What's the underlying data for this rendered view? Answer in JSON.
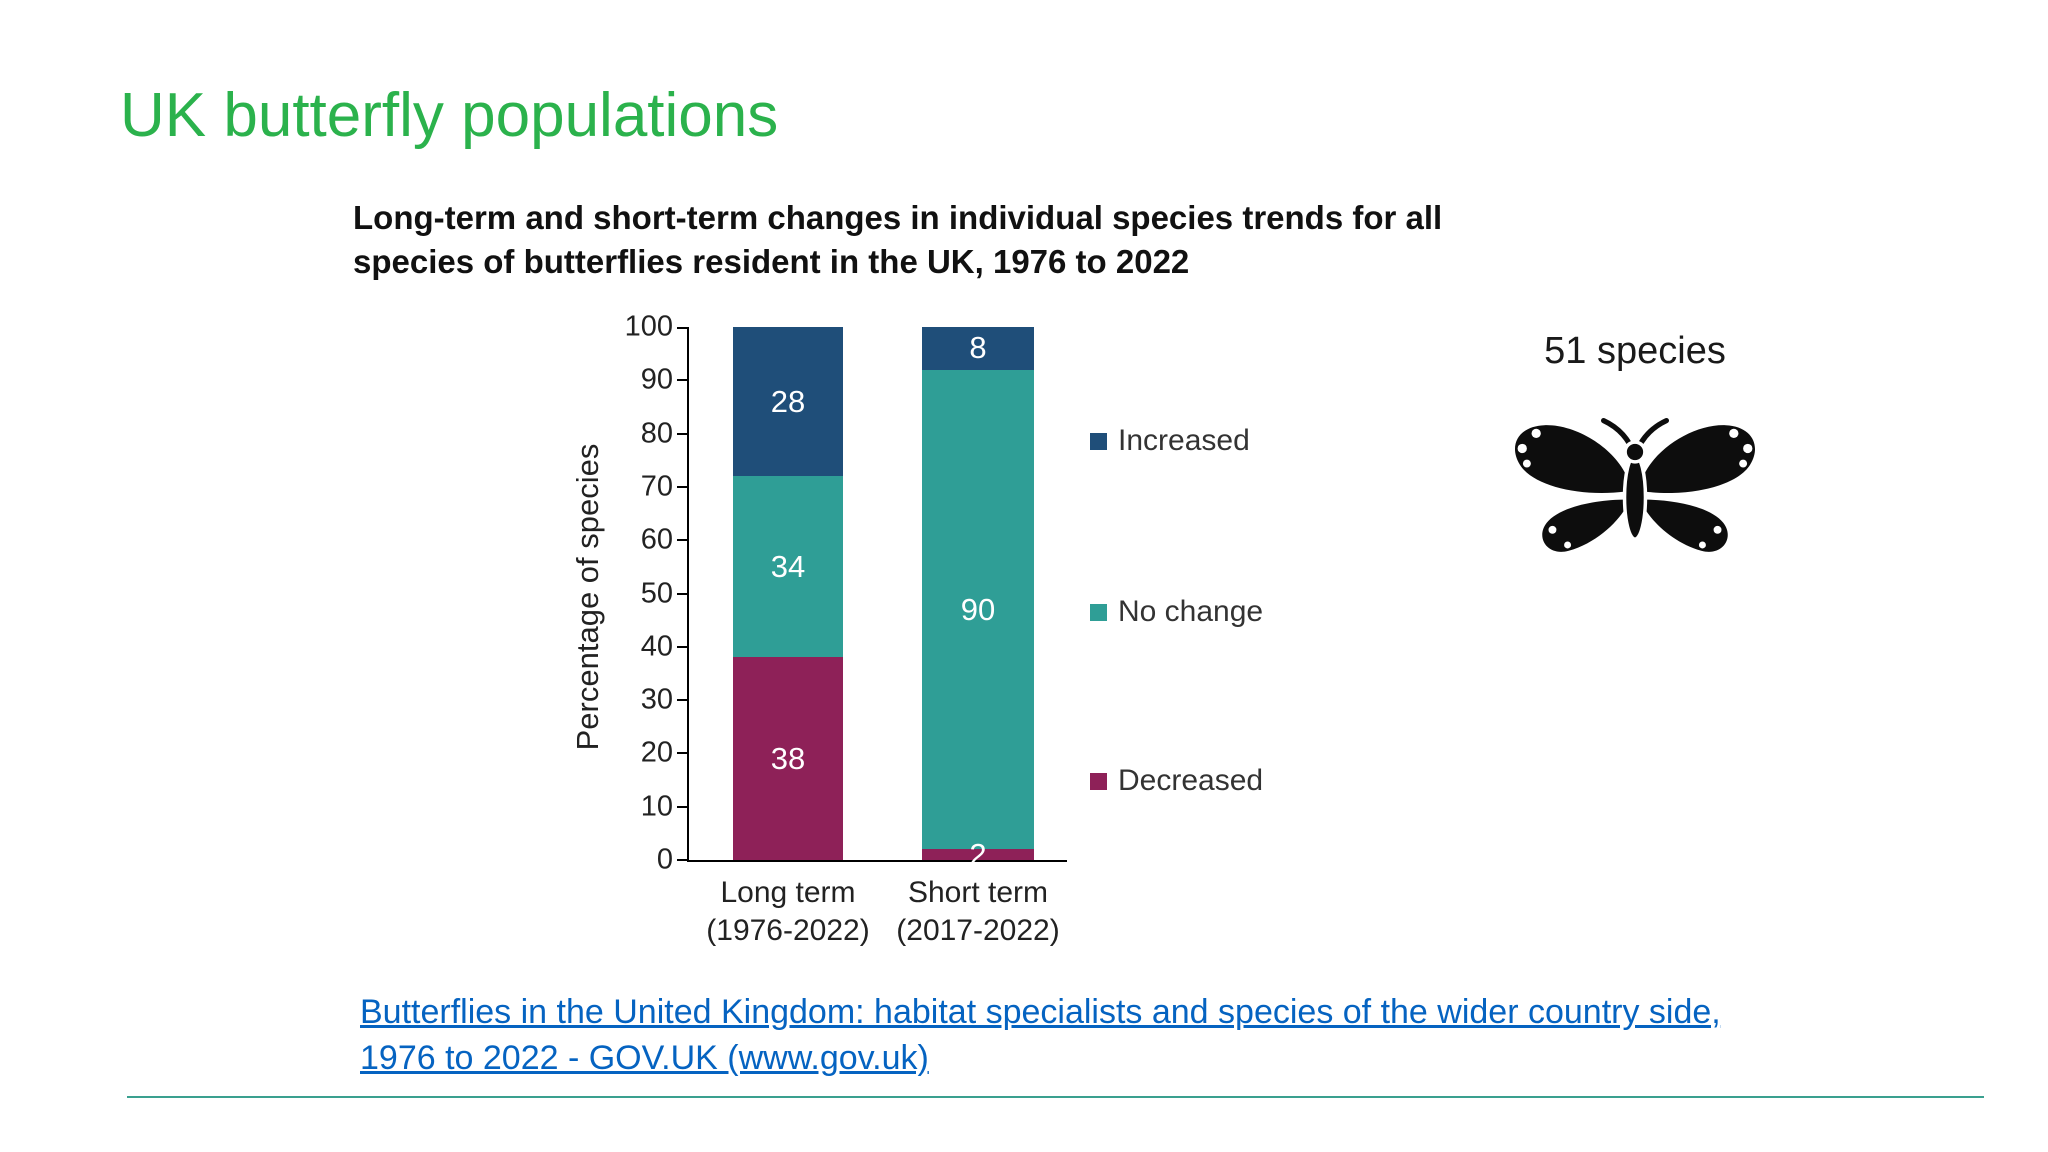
{
  "slide": {
    "title": "UK butterfly populations",
    "species_label": "51 species",
    "source_link_text": "Butterflies in the United Kingdom: habitat specialists and species of the wider country side, 1976 to 2022 - GOV.UK (www.gov.uk)"
  },
  "colors": {
    "title_green": "#2bb24c",
    "link_blue": "#0563c1",
    "divider_teal": "#3aa08f",
    "increased_navy": "#1f4e79",
    "no_change_teal": "#2f9e96",
    "decreased_maroon": "#8e2158",
    "butterfly_black": "#0d0d0d"
  },
  "chart_data": {
    "type": "bar",
    "stacked": true,
    "title": "Long-term and short-term changes in individual species trends for all species of butterflies resident in the UK, 1976 to 2022",
    "categories": [
      {
        "label": "Long term",
        "sublabel": "(1976-2022)"
      },
      {
        "label": "Short term",
        "sublabel": "(2017-2022)"
      }
    ],
    "series": [
      {
        "name": "Decreased",
        "values": [
          38,
          2
        ],
        "color": "#8e2158"
      },
      {
        "name": "No change",
        "values": [
          34,
          90
        ],
        "color": "#2f9e96"
      },
      {
        "name": "Increased",
        "values": [
          28,
          8
        ],
        "color": "#1f4e79"
      }
    ],
    "ylabel": "Percentage of species",
    "ylim": [
      0,
      100
    ],
    "yticks": [
      0,
      10,
      20,
      30,
      40,
      50,
      60,
      70,
      80,
      90,
      100
    ],
    "grid": false,
    "legend_position": "right",
    "legend_order": [
      "Increased",
      "No change",
      "Decreased"
    ]
  }
}
